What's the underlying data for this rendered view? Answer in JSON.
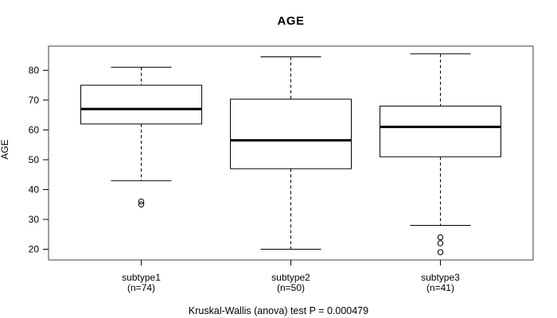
{
  "chart_data": {
    "type": "boxplot",
    "title": "AGE",
    "ylabel": "AGE",
    "xlabel": "",
    "caption": "Kruskal-Wallis (anova) test P = 0.000479",
    "y_ticks": [
      20,
      30,
      40,
      50,
      60,
      70,
      80
    ],
    "ylim": [
      16.4,
      88.1
    ],
    "grid": "off",
    "groups": [
      {
        "label": "subtype1",
        "sublabel": "(n=74)",
        "n": 74,
        "whisker_low": 43,
        "q1": 62,
        "median": 67,
        "q3": 75,
        "whisker_high": 81,
        "outliers": [
          36,
          35
        ]
      },
      {
        "label": "subtype2",
        "sublabel": "(n=50)",
        "n": 50,
        "whisker_low": 20,
        "q1": 47,
        "median": 56.5,
        "q3": 70.3,
        "whisker_high": 84.5,
        "outliers": []
      },
      {
        "label": "subtype3",
        "sublabel": "(n=41)",
        "n": 41,
        "whisker_low": 28,
        "q1": 51,
        "median": 61,
        "q3": 68,
        "whisker_high": 85.5,
        "outliers": [
          24,
          22,
          19
        ]
      }
    ]
  },
  "colors": {
    "line": "#000000",
    "plot_border": "#606060",
    "background": "#ffffff"
  }
}
